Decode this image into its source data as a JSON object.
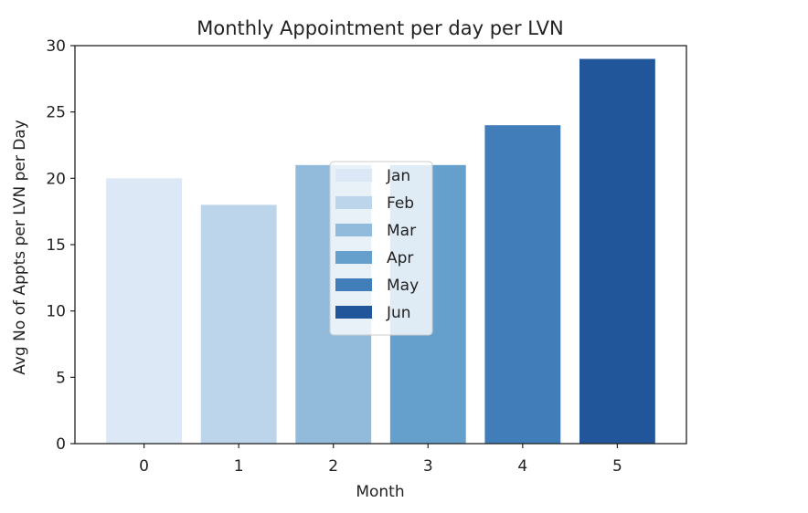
{
  "chart_data": {
    "type": "bar",
    "title": "Monthly Appointment per day per LVN",
    "xlabel": "Month",
    "ylabel": "Avg No of Appts per LVN per Day",
    "categories": [
      "0",
      "1",
      "2",
      "3",
      "4",
      "5"
    ],
    "ylim": [
      0,
      30
    ],
    "yticks": [
      "0",
      "5",
      "10",
      "15",
      "20",
      "25",
      "30"
    ],
    "series": [
      {
        "name": "Jan",
        "x": 0,
        "value": 20,
        "color": "#dce8f5"
      },
      {
        "name": "Feb",
        "x": 1,
        "value": 18,
        "color": "#bdd5ea"
      },
      {
        "name": "Mar",
        "x": 2,
        "value": 21,
        "color": "#92bbdb"
      },
      {
        "name": "Apr",
        "x": 3,
        "value": 21,
        "color": "#65a0cc"
      },
      {
        "name": "May",
        "x": 4,
        "value": 24,
        "color": "#417db8"
      },
      {
        "name": "Jun",
        "x": 5,
        "value": 29,
        "color": "#22569a"
      }
    ],
    "grid": false,
    "legend": "center"
  }
}
